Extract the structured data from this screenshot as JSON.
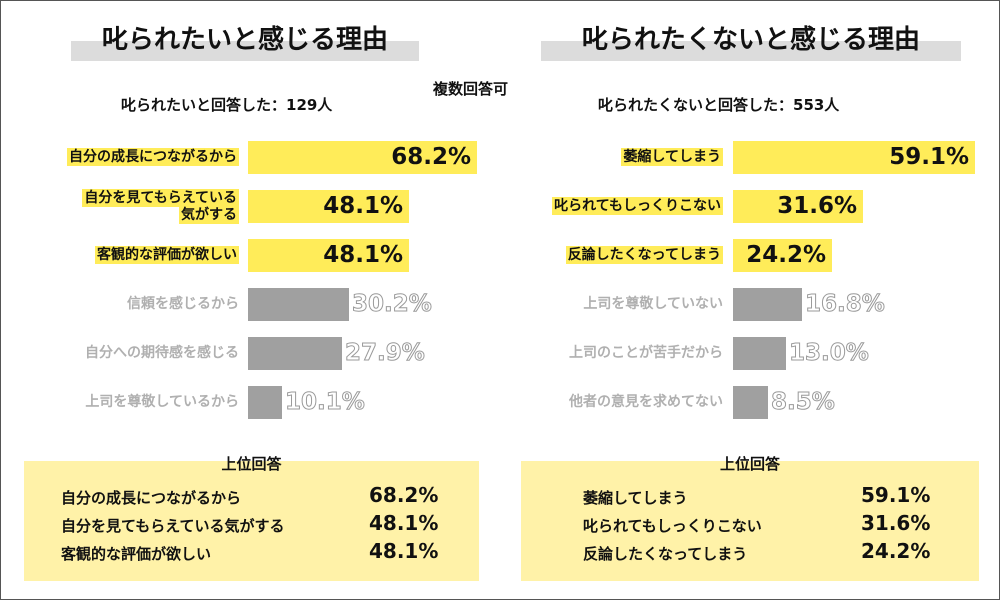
{
  "chart_data": [
    {
      "type": "bar",
      "title": "叱られたいと感じる理由",
      "subtitle": "叱られたいと回答した：129人",
      "categories": [
        "自分の成長につながるから",
        "自分を見てもらえている気がする",
        "客観的な評価が欲しい",
        "信頼を感じるから",
        "自分への期待感を感じる",
        "上司を尊敬しているから"
      ],
      "category_lines": [
        [
          "自分の成長につながるから"
        ],
        [
          "自分を見てもらえている",
          "気がする"
        ],
        [
          "客観的な評価が欲しい"
        ],
        [
          "信頼を感じるから"
        ],
        [
          "自分への期待感を感じる"
        ],
        [
          "上司を尊敬しているから"
        ]
      ],
      "values": [
        68.2,
        48.1,
        48.1,
        30.2,
        27.9,
        10.1
      ],
      "labels": [
        "68.2%",
        "48.1%",
        "48.1%",
        "30.2%",
        "27.9%",
        "10.1%"
      ],
      "highlighted_count": 3,
      "xlim": [
        0,
        70
      ],
      "top_answers": {
        "heading": "上位回答",
        "rows": [
          {
            "label": "自分の成長につながるから",
            "value": "68.2%"
          },
          {
            "label": "自分を見てもらえている気がする",
            "value": "48.1%"
          },
          {
            "label": "客観的な評価が欲しい",
            "value": "48.1%"
          }
        ]
      }
    },
    {
      "type": "bar",
      "title": "叱られたくないと感じる理由",
      "subtitle": "叱られたくないと回答した：553人",
      "categories": [
        "萎縮してしまう",
        "叱られてもしっくりこない",
        "反論したくなってしまう",
        "上司を尊敬していない",
        "上司のことが苦手だから",
        "他者の意見を求めてない"
      ],
      "category_lines": [
        [
          "萎縮してしまう"
        ],
        [
          "叱られてもしっくりこない"
        ],
        [
          "反論したくなってしまう"
        ],
        [
          "上司を尊敬していない"
        ],
        [
          "上司のことが苦手だから"
        ],
        [
          "他者の意見を求めてない"
        ]
      ],
      "values": [
        59.1,
        31.6,
        24.2,
        16.8,
        13.0,
        8.5
      ],
      "labels": [
        "59.1%",
        "31.6%",
        "24.2%",
        "16.8%",
        "13.0%",
        "8.5%"
      ],
      "highlighted_count": 3,
      "xlim": [
        0,
        60
      ],
      "top_answers": {
        "heading": "上位回答",
        "rows": [
          {
            "label": "萎縮してしまう",
            "value": "59.1%"
          },
          {
            "label": "叱られてもしっくりこない",
            "value": "31.6%"
          },
          {
            "label": "反論したくなってしまう",
            "value": "24.2%"
          }
        ]
      }
    }
  ],
  "note": "複数回答可",
  "colors": {
    "highlight": "#ffec59",
    "muted_bar": "#a0a0a0",
    "box": "#fff2a8",
    "title_bar": "#dcdcdc"
  }
}
